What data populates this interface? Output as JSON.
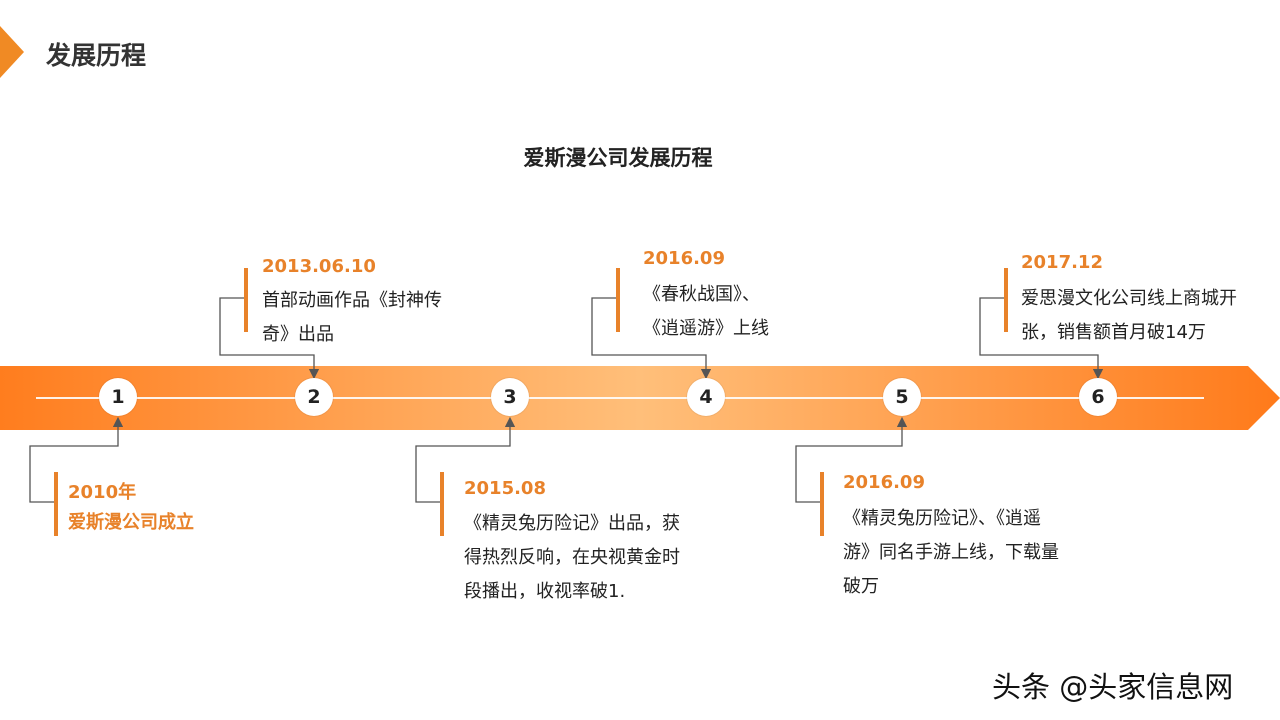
{
  "header": {
    "title": "发展历程"
  },
  "diagram": {
    "title": "爱斯漫公司发展历程",
    "nodes": [
      "1",
      "2",
      "3",
      "4",
      "5",
      "6"
    ],
    "events": [
      {
        "node": "1",
        "date": "2010年",
        "lines": [
          "爱斯漫公司成立"
        ]
      },
      {
        "node": "2",
        "date": "2013.06.10",
        "lines": [
          "首部动画作品《封神传",
          "奇》出品"
        ]
      },
      {
        "node": "3",
        "date": "2015.08",
        "lines": [
          "《精灵兔历险记》出品，获",
          "得热烈反响，在央视黄金时",
          "段播出，收视率破1."
        ]
      },
      {
        "node": "4",
        "date": "2016.09",
        "lines": [
          "《春秋战国》、",
          "《逍遥游》上线"
        ]
      },
      {
        "node": "5",
        "date": "2016.09",
        "lines": [
          "《精灵兔历险记》、《逍遥",
          "游》同名手游上线，下载量",
          "破万"
        ]
      },
      {
        "node": "6",
        "date": "2017.12",
        "lines": [
          "爱思漫文化公司线上商城开",
          "张，销售额首月破14万"
        ]
      }
    ]
  },
  "colors": {
    "accent": "#e8822a",
    "band_light": "#ffbf7a",
    "band_dark": "#ff7a1a"
  },
  "watermark": "头条 @头家信息网"
}
